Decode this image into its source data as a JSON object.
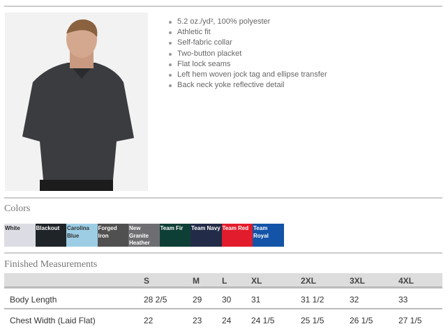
{
  "features": [
    "5.2 oz./yd², 100% polyester",
    "Athletic fit",
    "Self-fabric collar",
    "Two-button placket",
    "Flat lock seams",
    "Left hem woven jock tag and ellipse transfer",
    "Back neck yoke reflective detail"
  ],
  "colors_title": "Colors",
  "colors": [
    {
      "name": "White",
      "hex": "#dcdde4",
      "text": "#222"
    },
    {
      "name": "Blackout",
      "hex": "#1e2428",
      "text": "#fff"
    },
    {
      "name": "Carolina Blue",
      "hex": "#9dcde4",
      "text": "#333"
    },
    {
      "name": "Forged Iron",
      "hex": "#505050",
      "text": "#fff"
    },
    {
      "name": "New Granite Heather",
      "hex": "#6e6e72",
      "text": "#fff"
    },
    {
      "name": "Team Fir",
      "hex": "#0e3f36",
      "text": "#fff"
    },
    {
      "name": "Team Navy",
      "hex": "#222c48",
      "text": "#fff"
    },
    {
      "name": "Team Red",
      "hex": "#e21c2c",
      "text": "#fff"
    },
    {
      "name": "Team Royal",
      "hex": "#1454a8",
      "text": "#fff"
    }
  ],
  "measurements": {
    "title": "Finished Measurements",
    "sizes": [
      "S",
      "M",
      "L",
      "XL",
      "2XL",
      "3XL",
      "4XL"
    ],
    "rows": [
      {
        "label": "Body Length",
        "values": [
          "28 2/5",
          "29",
          "30",
          "31",
          "31 1/2",
          "32",
          "33"
        ]
      },
      {
        "label": "Chest Width (Laid Flat)",
        "values": [
          "22",
          "23",
          "24",
          "24 1/5",
          "25 1/5",
          "26 1/5",
          "27 1/5"
        ]
      }
    ]
  }
}
